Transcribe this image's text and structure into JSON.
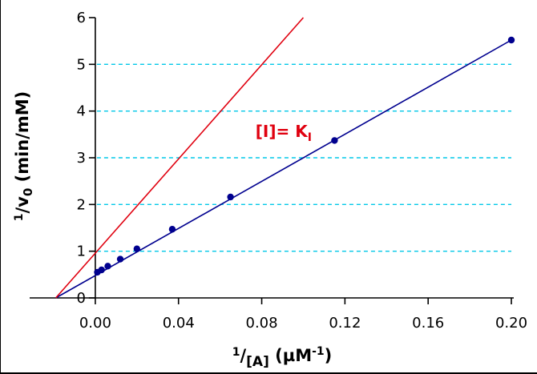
{
  "chart_data": {
    "type": "line",
    "title": "",
    "xlim": [
      -0.02,
      0.2
    ],
    "ylim": [
      0,
      6
    ],
    "x_ticks": [
      "0.00",
      "0.04",
      "0.08",
      "0.12",
      "0.16",
      "0.20"
    ],
    "y_ticks": [
      "0",
      "1",
      "2",
      "3",
      "4",
      "5",
      "6"
    ],
    "xlabel": {
      "prefix": "1",
      "main": "/",
      "sub": "[A]",
      "units_open": " (µM",
      "units_sup": "-1",
      "units_close": ")"
    },
    "ylabel": {
      "prefix": "1",
      "main": "/v",
      "sub": "0",
      "units": " (min/mM)"
    },
    "gridlines_y": [
      1,
      2,
      3,
      4,
      5
    ],
    "grid": true,
    "series": [
      {
        "color": "#00008f",
        "line": {
          "x": [
            -0.019,
            0.2
          ],
          "y": [
            0,
            5.52
          ]
        },
        "points": {
          "x": [
            0.001,
            0.003,
            0.006,
            0.012,
            0.02,
            0.037,
            0.065,
            0.115,
            0.2
          ],
          "y": [
            0.55,
            0.6,
            0.68,
            0.83,
            1.05,
            1.47,
            2.16,
            3.37,
            5.52
          ]
        }
      },
      {
        "color": "#e0000f",
        "line": {
          "x": [
            -0.019,
            0.1
          ],
          "y": [
            0,
            6.0
          ]
        },
        "points": null
      }
    ],
    "annotations": [
      {
        "label": "[I]= K",
        "sub": "I",
        "x": 0.077,
        "y": 3.45
      }
    ]
  }
}
